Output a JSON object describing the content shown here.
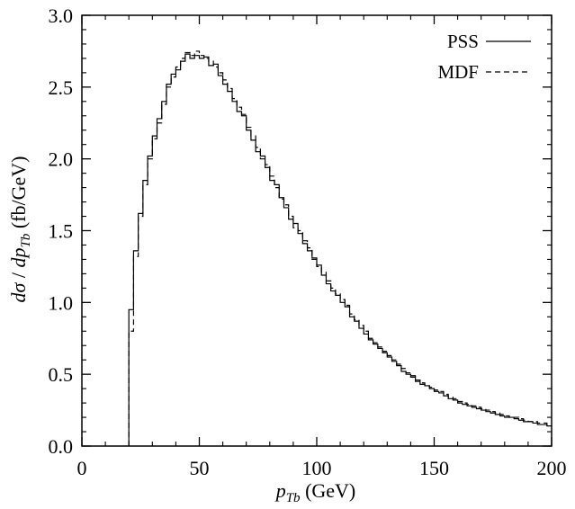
{
  "chart_data": {
    "type": "line",
    "title": "",
    "xlabel": "p_Tb (GeV)",
    "xlabel_main": "p",
    "xlabel_sub": "Tb",
    "xlabel_unit": " (GeV)",
    "ylabel": "dσ/dp_Tb (fb/GeV)",
    "ylabel_num": "dσ",
    "ylabel_slash": " / ",
    "ylabel_dp": "dp",
    "ylabel_sub": "Tb",
    "ylabel_unit": " (fb/GeV)",
    "xlim": [
      0,
      200
    ],
    "ylim": [
      0,
      3.0
    ],
    "x_ticks": [
      0,
      50,
      100,
      150,
      200
    ],
    "x_tick_labels": [
      "0",
      "50",
      "100",
      "150",
      "200"
    ],
    "y_ticks": [
      0,
      0.5,
      1.0,
      1.5,
      2.0,
      2.5,
      3.0
    ],
    "y_tick_labels": [
      "0.0",
      "0.5",
      "1.0",
      "1.5",
      "2.0",
      "2.5",
      "3.0"
    ],
    "grid": false,
    "legend_position": "top-right",
    "line_style": "step",
    "x": [
      20,
      22,
      24,
      26,
      28,
      30,
      32,
      34,
      36,
      38,
      40,
      42,
      44,
      46,
      48,
      50,
      52,
      54,
      56,
      58,
      60,
      62,
      64,
      66,
      68,
      70,
      72,
      74,
      76,
      78,
      80,
      82,
      84,
      86,
      88,
      90,
      92,
      94,
      96,
      98,
      100,
      102,
      104,
      106,
      108,
      110,
      112,
      114,
      116,
      118,
      120,
      122,
      124,
      126,
      128,
      130,
      132,
      134,
      136,
      138,
      140,
      142,
      144,
      146,
      148,
      150,
      152,
      154,
      156,
      158,
      160,
      162,
      164,
      166,
      168,
      170,
      172,
      174,
      176,
      178,
      180,
      182,
      184,
      186,
      188,
      190,
      192,
      194,
      196,
      198,
      200
    ],
    "series": [
      {
        "name": "PSS",
        "dash": "solid",
        "values": [
          0.95,
          1.36,
          1.62,
          1.85,
          2.02,
          2.16,
          2.28,
          2.4,
          2.52,
          2.59,
          2.62,
          2.68,
          2.73,
          2.7,
          2.72,
          2.7,
          2.71,
          2.65,
          2.66,
          2.58,
          2.52,
          2.47,
          2.4,
          2.33,
          2.3,
          2.2,
          2.13,
          2.05,
          2.02,
          1.94,
          1.85,
          1.82,
          1.73,
          1.66,
          1.58,
          1.55,
          1.48,
          1.41,
          1.36,
          1.31,
          1.26,
          1.19,
          1.13,
          1.08,
          1.05,
          1.0,
          0.97,
          0.9,
          0.87,
          0.82,
          0.78,
          0.74,
          0.71,
          0.68,
          0.65,
          0.62,
          0.59,
          0.56,
          0.52,
          0.5,
          0.48,
          0.45,
          0.43,
          0.42,
          0.4,
          0.38,
          0.37,
          0.35,
          0.33,
          0.32,
          0.3,
          0.29,
          0.28,
          0.27,
          0.26,
          0.25,
          0.24,
          0.23,
          0.22,
          0.21,
          0.2,
          0.2,
          0.19,
          0.18,
          0.17,
          0.17,
          0.16,
          0.15,
          0.15,
          0.14,
          0.14
        ]
      },
      {
        "name": "MDF",
        "dash": "dashed",
        "values": [
          0.8,
          1.32,
          1.6,
          1.82,
          2.0,
          2.14,
          2.25,
          2.38,
          2.5,
          2.57,
          2.64,
          2.7,
          2.74,
          2.72,
          2.75,
          2.72,
          2.7,
          2.68,
          2.64,
          2.6,
          2.55,
          2.49,
          2.42,
          2.36,
          2.31,
          2.22,
          2.16,
          2.08,
          2.0,
          1.96,
          1.88,
          1.8,
          1.72,
          1.68,
          1.6,
          1.52,
          1.5,
          1.43,
          1.38,
          1.3,
          1.25,
          1.21,
          1.15,
          1.1,
          1.06,
          1.02,
          0.98,
          0.92,
          0.88,
          0.84,
          0.8,
          0.75,
          0.72,
          0.69,
          0.66,
          0.63,
          0.6,
          0.57,
          0.54,
          0.51,
          0.49,
          0.46,
          0.44,
          0.42,
          0.41,
          0.39,
          0.38,
          0.36,
          0.34,
          0.33,
          0.31,
          0.3,
          0.29,
          0.28,
          0.27,
          0.26,
          0.25,
          0.24,
          0.23,
          0.22,
          0.21,
          0.2,
          0.2,
          0.19,
          0.18,
          0.17,
          0.17,
          0.16,
          0.16,
          0.15,
          0.15
        ]
      }
    ]
  }
}
